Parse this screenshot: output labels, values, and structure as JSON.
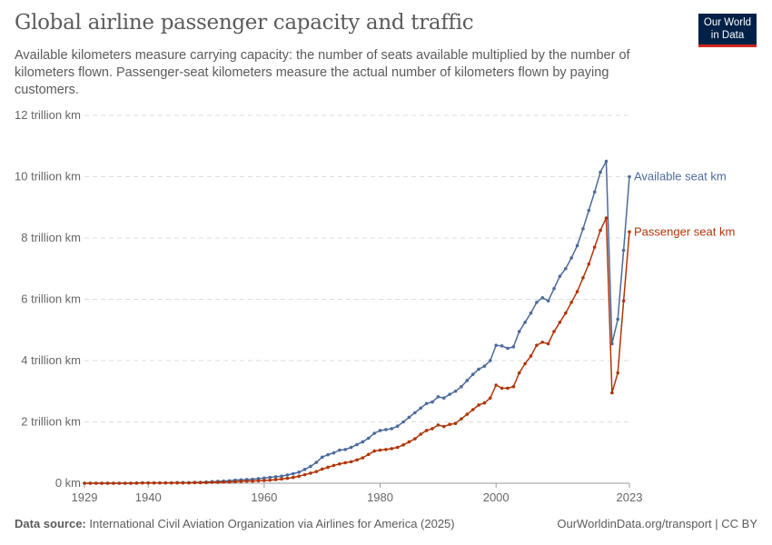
{
  "title": "Global airline passenger capacity and traffic",
  "subtitle": "Available kilometers measure carrying capacity: the number of seats available multiplied by the number of kilometers flown. Passenger-seat kilometers measure the actual number of kilometers flown by paying customers.",
  "logo": "Our World in Data",
  "footer": {
    "source_label": "Data source:",
    "source_text": "International Civil Aviation Organization via Airlines for America (2025)",
    "right": "OurWorldinData.org/transport | CC BY"
  },
  "chart_data": {
    "type": "line",
    "ylim": [
      0,
      12
    ],
    "xlim": [
      1929,
      2023
    ],
    "grid": "horizontal dashed",
    "y_ticks": [
      0,
      2,
      4,
      6,
      8,
      10,
      12
    ],
    "y_tick_labels": [
      "0 km",
      "2 trillion km",
      "4 trillion km",
      "6 trillion km",
      "8 trillion km",
      "10 trillion km",
      "12 trillion km"
    ],
    "x_ticks": [
      1929,
      1940,
      1960,
      1980,
      2000,
      2023
    ],
    "x_tick_labels": [
      "1929",
      "1940",
      "1960",
      "1980",
      "2000",
      "2023"
    ],
    "x_start": 1929,
    "series": [
      {
        "name": "Available seat km",
        "color": "#4c6a9c",
        "values": [
          0,
          0,
          0,
          0,
          0,
          0,
          0,
          0,
          0,
          0.01,
          0.01,
          0.01,
          0.01,
          0.01,
          0.01,
          0.01,
          0.02,
          0.02,
          0.02,
          0.03,
          0.03,
          0.04,
          0.05,
          0.06,
          0.07,
          0.08,
          0.1,
          0.11,
          0.12,
          0.13,
          0.15,
          0.17,
          0.19,
          0.21,
          0.23,
          0.27,
          0.31,
          0.36,
          0.45,
          0.55,
          0.68,
          0.85,
          0.93,
          0.99,
          1.08,
          1.1,
          1.17,
          1.26,
          1.35,
          1.47,
          1.63,
          1.72,
          1.75,
          1.78,
          1.86,
          2.0,
          2.15,
          2.3,
          2.45,
          2.6,
          2.65,
          2.82,
          2.78,
          2.9,
          3.0,
          3.15,
          3.35,
          3.55,
          3.72,
          3.82,
          4.0,
          4.5,
          4.48,
          4.4,
          4.45,
          4.95,
          5.25,
          5.55,
          5.9,
          6.05,
          5.95,
          6.35,
          6.75,
          7.0,
          7.35,
          7.75,
          8.3,
          8.9,
          9.5,
          10.15,
          10.5,
          4.55,
          5.35,
          7.6,
          10.0
        ]
      },
      {
        "name": "Passenger seat km",
        "color": "#b13507",
        "values": [
          0,
          0,
          0,
          0,
          0,
          0,
          0,
          0,
          0,
          0,
          0.01,
          0.01,
          0.01,
          0.01,
          0.01,
          0.01,
          0.01,
          0.01,
          0.01,
          0.02,
          0.02,
          0.02,
          0.03,
          0.03,
          0.04,
          0.04,
          0.05,
          0.06,
          0.07,
          0.07,
          0.08,
          0.09,
          0.1,
          0.12,
          0.14,
          0.16,
          0.19,
          0.23,
          0.28,
          0.33,
          0.38,
          0.46,
          0.52,
          0.58,
          0.63,
          0.67,
          0.7,
          0.76,
          0.83,
          0.94,
          1.05,
          1.08,
          1.1,
          1.13,
          1.17,
          1.25,
          1.35,
          1.45,
          1.6,
          1.72,
          1.78,
          1.9,
          1.85,
          1.92,
          1.95,
          2.1,
          2.25,
          2.4,
          2.55,
          2.62,
          2.78,
          3.2,
          3.1,
          3.1,
          3.15,
          3.6,
          3.9,
          4.15,
          4.5,
          4.6,
          4.55,
          4.95,
          5.25,
          5.55,
          5.9,
          6.25,
          6.7,
          7.15,
          7.7,
          8.25,
          8.65,
          2.95,
          3.6,
          5.95,
          8.2
        ]
      }
    ]
  }
}
